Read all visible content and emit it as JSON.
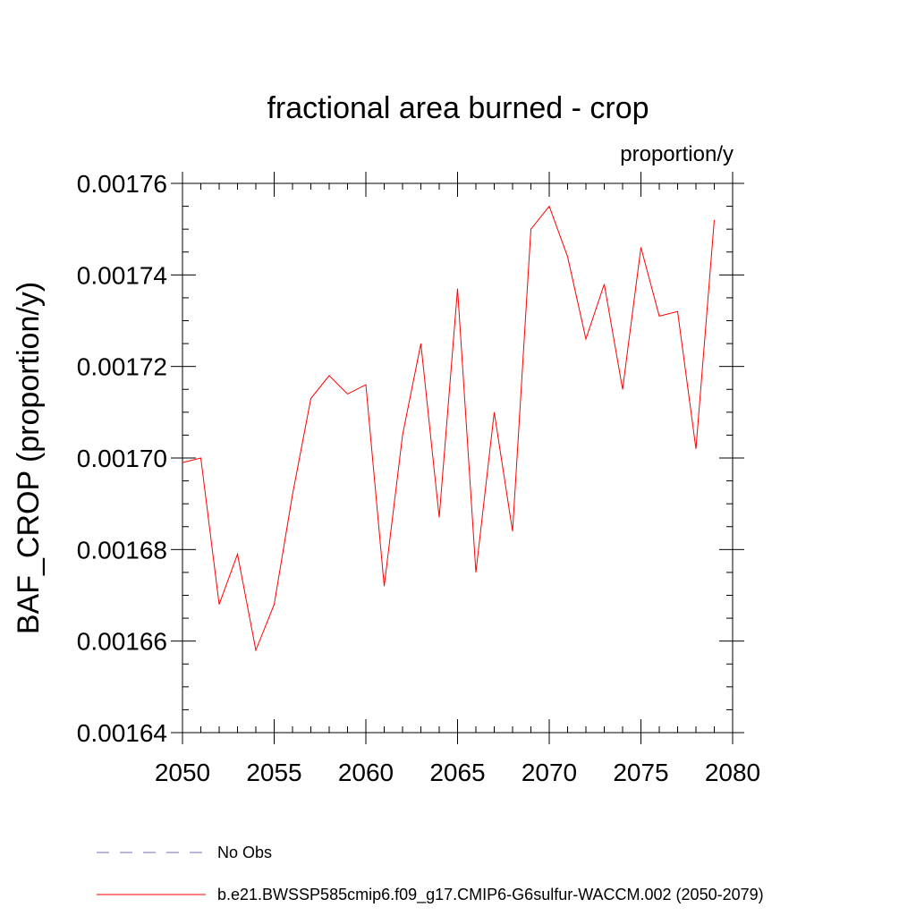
{
  "chart_data": {
    "type": "line",
    "title": "fractional area burned - crop",
    "units_label": "proportion/y",
    "ylabel": "BAF_CROP  (proportion/y)",
    "xlabel": "",
    "xlim": [
      2050,
      2080
    ],
    "ylim": [
      0.00164,
      0.00176
    ],
    "x_ticks": [
      2050,
      2055,
      2060,
      2065,
      2070,
      2075,
      2080
    ],
    "x_tick_labels": [
      "2050",
      "2055",
      "2060",
      "2065",
      "2070",
      "2075",
      "2080"
    ],
    "y_ticks": [
      0.00164,
      0.00166,
      0.00168,
      0.0017,
      0.00172,
      0.00174,
      0.00176
    ],
    "y_tick_labels": [
      "0.00164",
      "0.00166",
      "0.00168",
      "0.00170",
      "0.00172",
      "0.00174",
      "0.00176"
    ],
    "grid": false,
    "series": [
      {
        "name": "b.e21.BWSSP585cmip6.f09_g17.CMIP6-G6sulfur-WACCM.002 (2050-2079)",
        "color": "#ff0000",
        "x": [
          2050,
          2051,
          2052,
          2053,
          2054,
          2055,
          2056,
          2057,
          2058,
          2059,
          2060,
          2061,
          2062,
          2063,
          2064,
          2065,
          2066,
          2067,
          2068,
          2069,
          2070,
          2071,
          2072,
          2073,
          2074,
          2075,
          2076,
          2077,
          2078,
          2079
        ],
        "values": [
          0.001699,
          0.0017,
          0.001668,
          0.001679,
          0.001658,
          0.001668,
          0.001692,
          0.001713,
          0.001718,
          0.001714,
          0.001716,
          0.001672,
          0.001705,
          0.001725,
          0.001687,
          0.001737,
          0.001675,
          0.00171,
          0.001684,
          0.00175,
          0.001755,
          0.001744,
          0.001726,
          0.001738,
          0.001715,
          0.001746,
          0.001731,
          0.001732,
          0.001702,
          0.001752
        ]
      }
    ],
    "legend": {
      "placement": "bottom",
      "entries": [
        {
          "label": "No Obs",
          "color": "#7b68b0",
          "style": "dashed"
        },
        {
          "label": "b.e21.BWSSP585cmip6.f09_g17.CMIP6-G6sulfur-WACCM.002 (2050-2079)",
          "color": "#ff0000",
          "style": "solid"
        }
      ]
    }
  }
}
